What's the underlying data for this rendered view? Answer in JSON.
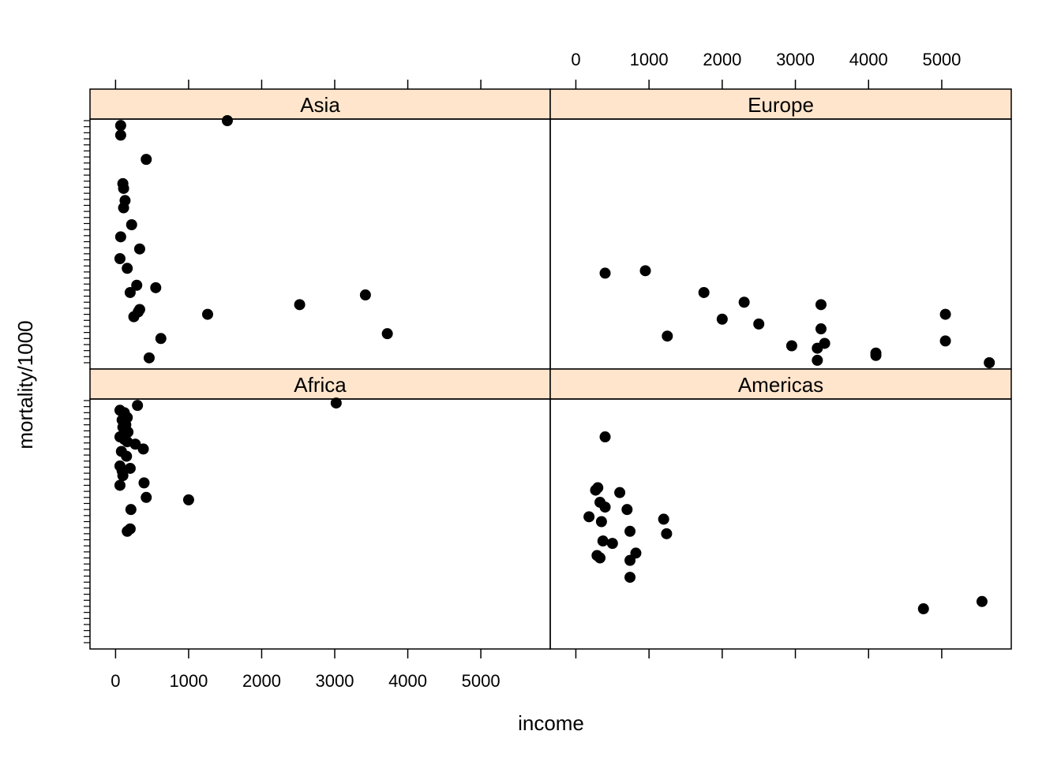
{
  "chart_data": {
    "type": "scatter",
    "layout": "trellis 2x2",
    "xlabel": "income",
    "ylabel": "mortality/1000",
    "xlim": [
      -350,
      5950
    ],
    "x_ticks": [
      0,
      1000,
      2000,
      3000,
      4000,
      5000
    ],
    "strip_color": "#ffe5cc",
    "point_color": "#000000",
    "panels": [
      {
        "name": "Asia",
        "points": [
          [
            70,
            0.98
          ],
          [
            70,
            0.94
          ],
          [
            1530,
            1.0
          ],
          [
            420,
            0.84
          ],
          [
            100,
            0.74
          ],
          [
            110,
            0.72
          ],
          [
            130,
            0.67
          ],
          [
            110,
            0.64
          ],
          [
            220,
            0.57
          ],
          [
            70,
            0.52
          ],
          [
            330,
            0.47
          ],
          [
            60,
            0.43
          ],
          [
            160,
            0.39
          ],
          [
            290,
            0.32
          ],
          [
            550,
            0.31
          ],
          [
            200,
            0.29
          ],
          [
            3420,
            0.28
          ],
          [
            2520,
            0.24
          ],
          [
            330,
            0.22
          ],
          [
            310,
            0.21
          ],
          [
            1260,
            0.2
          ],
          [
            250,
            0.19
          ],
          [
            3720,
            0.12
          ],
          [
            620,
            0.1
          ],
          [
            460,
            0.02
          ]
        ]
      },
      {
        "name": "Europe",
        "points": [
          [
            400,
            0.37
          ],
          [
            950,
            0.38
          ],
          [
            1750,
            0.29
          ],
          [
            2300,
            0.25
          ],
          [
            3350,
            0.24
          ],
          [
            2000,
            0.18
          ],
          [
            5050,
            0.2
          ],
          [
            2500,
            0.16
          ],
          [
            3350,
            0.14
          ],
          [
            1250,
            0.11
          ],
          [
            5050,
            0.09
          ],
          [
            3400,
            0.08
          ],
          [
            2950,
            0.07
          ],
          [
            3300,
            0.06
          ],
          [
            4100,
            0.04
          ],
          [
            4100,
            0.03
          ],
          [
            3300,
            0.01
          ],
          [
            5650,
            0.0
          ]
        ]
      },
      {
        "name": "Africa",
        "points": [
          [
            3020,
            0.99
          ],
          [
            300,
            0.98
          ],
          [
            60,
            0.96
          ],
          [
            120,
            0.95
          ],
          [
            160,
            0.93
          ],
          [
            90,
            0.92
          ],
          [
            140,
            0.9
          ],
          [
            100,
            0.89
          ],
          [
            170,
            0.87
          ],
          [
            60,
            0.85
          ],
          [
            120,
            0.84
          ],
          [
            160,
            0.83
          ],
          [
            270,
            0.82
          ],
          [
            380,
            0.8
          ],
          [
            80,
            0.79
          ],
          [
            150,
            0.77
          ],
          [
            60,
            0.73
          ],
          [
            200,
            0.72
          ],
          [
            90,
            0.71
          ],
          [
            100,
            0.69
          ],
          [
            390,
            0.66
          ],
          [
            60,
            0.65
          ],
          [
            420,
            0.6
          ],
          [
            1000,
            0.59
          ],
          [
            210,
            0.55
          ],
          [
            200,
            0.47
          ],
          [
            160,
            0.46
          ]
        ]
      },
      {
        "name": "Americas",
        "points": [
          [
            400,
            0.85
          ],
          [
            270,
            0.63
          ],
          [
            300,
            0.64
          ],
          [
            600,
            0.62
          ],
          [
            330,
            0.58
          ],
          [
            400,
            0.56
          ],
          [
            700,
            0.55
          ],
          [
            180,
            0.52
          ],
          [
            1200,
            0.51
          ],
          [
            350,
            0.5
          ],
          [
            740,
            0.46
          ],
          [
            1240,
            0.45
          ],
          [
            370,
            0.42
          ],
          [
            500,
            0.41
          ],
          [
            820,
            0.37
          ],
          [
            290,
            0.36
          ],
          [
            330,
            0.35
          ],
          [
            740,
            0.34
          ],
          [
            740,
            0.27
          ],
          [
            4750,
            0.14
          ],
          [
            5550,
            0.17
          ]
        ]
      }
    ]
  }
}
